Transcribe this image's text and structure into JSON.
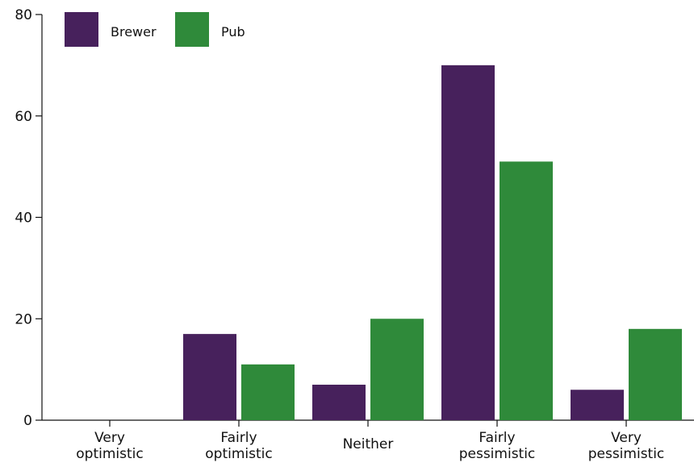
{
  "chart_data": {
    "type": "bar",
    "categories": [
      [
        "Very",
        "optimistic"
      ],
      [
        "Fairly",
        "optimistic"
      ],
      [
        "Neither"
      ],
      [
        "Fairly",
        "pessimistic"
      ],
      [
        "Very",
        "pessimistic"
      ]
    ],
    "series": [
      {
        "name": "Brewer",
        "color": "#47215c",
        "values": [
          0,
          17,
          7,
          70,
          6
        ]
      },
      {
        "name": "Pub",
        "color": "#2f8a3a",
        "values": [
          0,
          11,
          20,
          51,
          18
        ]
      }
    ],
    "ylim": [
      0,
      80
    ],
    "yticks": [
      0,
      20,
      40,
      60,
      80
    ],
    "grid": false,
    "legend_position": "top-left",
    "title": "",
    "xlabel": "",
    "ylabel": ""
  }
}
